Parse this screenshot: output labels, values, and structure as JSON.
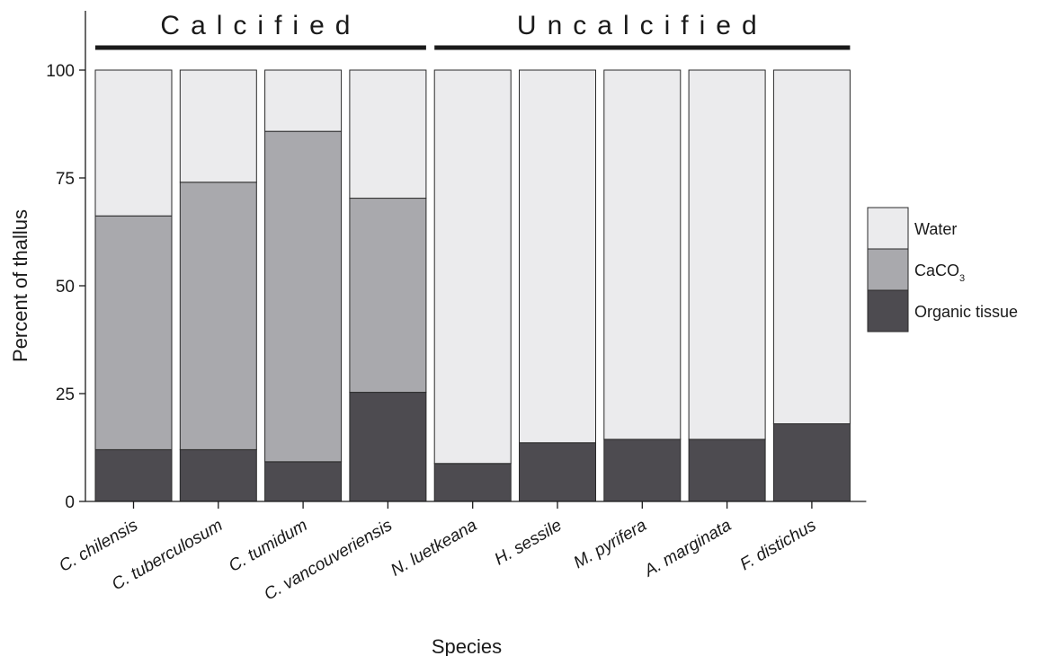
{
  "chart_data": {
    "type": "bar",
    "stacked": true,
    "categories": [
      "C. chilensis",
      "C. tuberculosum",
      "C. tumidum",
      "C. vancouveriensis",
      "N. luetkeana",
      "H. sessile",
      "M. pyrifera",
      "A. marginata",
      "F. distichus"
    ],
    "series": [
      {
        "name": "Organic tissue",
        "color": "#4d4b50",
        "values": [
          12,
          12,
          9.2,
          25.3,
          8.8,
          13.6,
          14.4,
          14.4,
          18
        ]
      },
      {
        "name": "CaCO3",
        "color": "#a9a9ad",
        "values": [
          54.2,
          62,
          76.6,
          45,
          0,
          0,
          0,
          0,
          0
        ]
      },
      {
        "name": "Water",
        "color": "#ebebed",
        "values": [
          33.8,
          26,
          14.2,
          29.7,
          91.2,
          86.4,
          85.6,
          85.6,
          82
        ]
      }
    ],
    "groups": [
      {
        "label": "Calcified",
        "categories": [
          "C. chilensis",
          "C. tuberculosum",
          "C. tumidum",
          "C. vancouveriensis"
        ]
      },
      {
        "label": "Uncalcified",
        "categories": [
          "N. luetkeana",
          "H. sessile",
          "M. pyrifera",
          "A. marginata",
          "F. distichus"
        ]
      }
    ],
    "xlabel": "Species",
    "ylabel": "Percent of thallus",
    "ylim": [
      0,
      100
    ],
    "yticks": [
      0,
      25,
      50,
      75,
      100
    ],
    "legend": {
      "placement": "right",
      "entries": [
        {
          "label": "Water",
          "sub": "",
          "color": "#ebebed"
        },
        {
          "label": "CaCO",
          "sub": "3",
          "color": "#a9a9ad"
        },
        {
          "label": "Organic tissue",
          "sub": "",
          "color": "#4d4b50"
        }
      ]
    },
    "grid": false
  }
}
